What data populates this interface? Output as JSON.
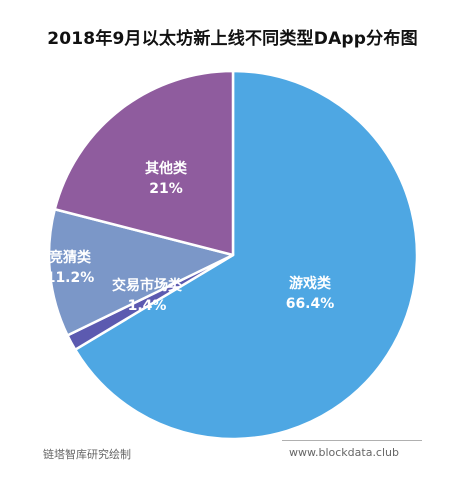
{
  "chart_data": {
    "type": "pie",
    "title": "2018年9月以太坊新上线不同类型DApp分布图",
    "slices": [
      {
        "label": "游戏类",
        "value_label": "66.4%",
        "value": 66.4,
        "color": "#4ea7e3"
      },
      {
        "label": "交易市场类",
        "value_label": "1.4%",
        "value": 1.4,
        "color": "#5c5ab0"
      },
      {
        "label": "竞猜类",
        "value_label": "11.2%",
        "value": 11.2,
        "color": "#7b97c8"
      },
      {
        "label": "其他类",
        "value_label": "21%",
        "value": 21.0,
        "color": "#8f5c9e"
      }
    ]
  },
  "footer": {
    "source": "链塔智库研究绘制",
    "website": "www.blockdata.club"
  }
}
